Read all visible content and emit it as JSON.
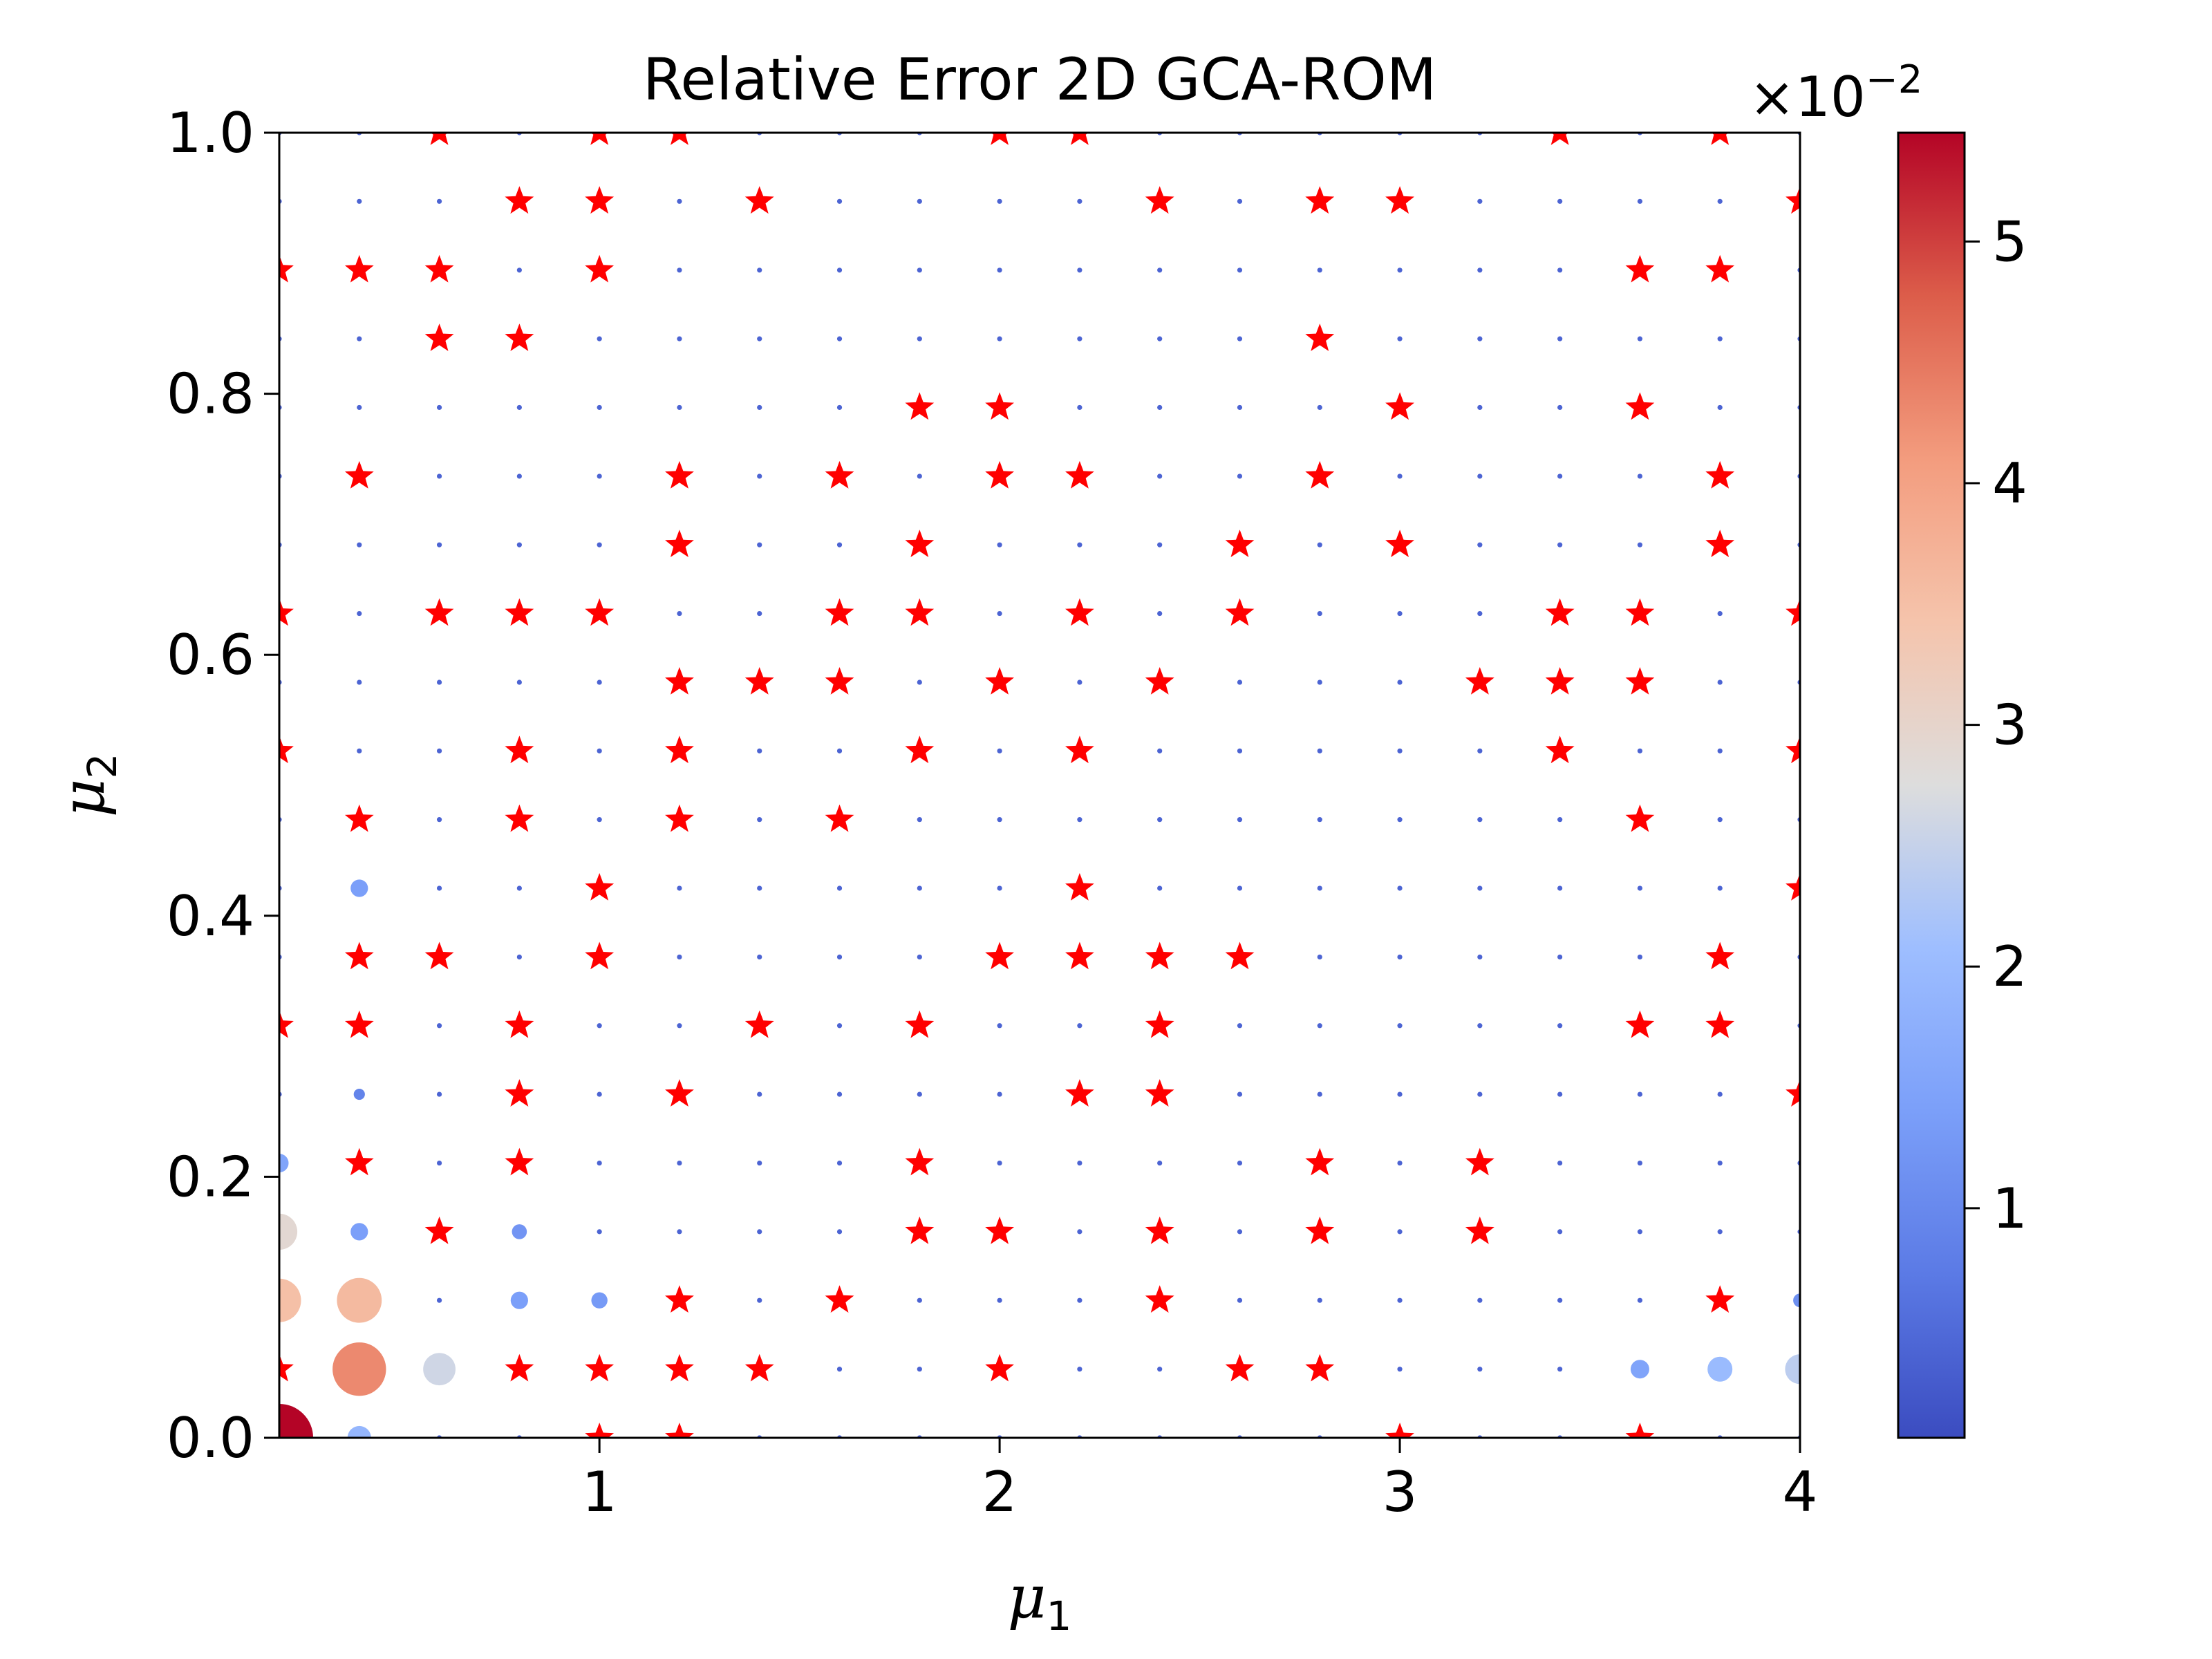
{
  "chart_data": {
    "type": "scatter",
    "title": "Relative Error 2D GCA-ROM",
    "xlabel": "μ1",
    "ylabel": "μ2",
    "xlim": [
      0.2,
      4.0
    ],
    "ylim": [
      0.0,
      1.0
    ],
    "x_ticks": [
      "1",
      "2",
      "3",
      "4"
    ],
    "x_tick_values": [
      1,
      2,
      3,
      4
    ],
    "y_ticks": [
      "0.0",
      "0.2",
      "0.4",
      "0.6",
      "0.8",
      "1.0"
    ],
    "y_tick_values": [
      0.0,
      0.2,
      0.4,
      0.6,
      0.8,
      1.0
    ],
    "grid": false,
    "colormap": "coolwarm",
    "colorbar": {
      "range": [
        0.05,
        5.45
      ],
      "ticks": [
        "1",
        "2",
        "3",
        "4",
        "5"
      ],
      "tick_values": [
        1,
        2,
        3,
        4,
        5
      ],
      "multiplier": "×10",
      "exponent": "−2"
    },
    "grid_x": [
      0.2,
      0.4,
      0.6,
      0.8,
      1.0,
      1.2,
      1.4,
      1.6,
      1.8,
      2.0,
      2.2,
      2.4,
      2.6,
      2.8,
      3.0,
      3.2,
      3.4,
      3.6,
      3.8,
      4.0
    ],
    "grid_y": [
      0.0,
      0.0526,
      0.1053,
      0.1579,
      0.2105,
      0.2632,
      0.3158,
      0.3684,
      0.4211,
      0.4737,
      0.5263,
      0.5789,
      0.6316,
      0.6842,
      0.7368,
      0.7895,
      0.8421,
      0.8947,
      0.9474,
      1.0
    ],
    "training_points_marker": "red star",
    "training_points": [
      [
        0.6,
        1.0
      ],
      [
        1.0,
        1.0
      ],
      [
        1.2,
        1.0
      ],
      [
        2.0,
        1.0
      ],
      [
        2.2,
        1.0
      ],
      [
        3.4,
        1.0
      ],
      [
        3.8,
        1.0
      ],
      [
        0.8,
        0.9474
      ],
      [
        1.0,
        0.9474
      ],
      [
        1.4,
        0.9474
      ],
      [
        2.4,
        0.9474
      ],
      [
        2.8,
        0.9474
      ],
      [
        3.0,
        0.9474
      ],
      [
        4.0,
        0.9474
      ],
      [
        0.2,
        0.8947
      ],
      [
        0.4,
        0.8947
      ],
      [
        0.6,
        0.8947
      ],
      [
        1.0,
        0.8947
      ],
      [
        3.6,
        0.8947
      ],
      [
        3.8,
        0.8947
      ],
      [
        0.6,
        0.8421
      ],
      [
        0.8,
        0.8421
      ],
      [
        2.8,
        0.8421
      ],
      [
        1.8,
        0.7895
      ],
      [
        2.0,
        0.7895
      ],
      [
        3.0,
        0.7895
      ],
      [
        3.6,
        0.7895
      ],
      [
        0.4,
        0.7368
      ],
      [
        1.2,
        0.7368
      ],
      [
        1.6,
        0.7368
      ],
      [
        2.0,
        0.7368
      ],
      [
        2.2,
        0.7368
      ],
      [
        2.8,
        0.7368
      ],
      [
        3.8,
        0.7368
      ],
      [
        1.2,
        0.6842
      ],
      [
        1.8,
        0.6842
      ],
      [
        2.6,
        0.6842
      ],
      [
        3.0,
        0.6842
      ],
      [
        3.8,
        0.6842
      ],
      [
        0.2,
        0.6316
      ],
      [
        0.6,
        0.6316
      ],
      [
        0.8,
        0.6316
      ],
      [
        1.0,
        0.6316
      ],
      [
        1.6,
        0.6316
      ],
      [
        1.8,
        0.6316
      ],
      [
        2.2,
        0.6316
      ],
      [
        2.6,
        0.6316
      ],
      [
        3.4,
        0.6316
      ],
      [
        3.6,
        0.6316
      ],
      [
        4.0,
        0.6316
      ],
      [
        1.2,
        0.5789
      ],
      [
        1.4,
        0.5789
      ],
      [
        1.6,
        0.5789
      ],
      [
        2.0,
        0.5789
      ],
      [
        2.4,
        0.5789
      ],
      [
        3.2,
        0.5789
      ],
      [
        3.4,
        0.5789
      ],
      [
        3.6,
        0.5789
      ],
      [
        0.2,
        0.5263
      ],
      [
        0.8,
        0.5263
      ],
      [
        1.2,
        0.5263
      ],
      [
        1.8,
        0.5263
      ],
      [
        2.2,
        0.5263
      ],
      [
        3.4,
        0.5263
      ],
      [
        4.0,
        0.5263
      ],
      [
        0.4,
        0.4737
      ],
      [
        0.8,
        0.4737
      ],
      [
        1.2,
        0.4737
      ],
      [
        1.6,
        0.4737
      ],
      [
        3.6,
        0.4737
      ],
      [
        1.0,
        0.4211
      ],
      [
        2.2,
        0.4211
      ],
      [
        4.0,
        0.4211
      ],
      [
        0.4,
        0.3684
      ],
      [
        0.6,
        0.3684
      ],
      [
        1.0,
        0.3684
      ],
      [
        2.0,
        0.3684
      ],
      [
        2.2,
        0.3684
      ],
      [
        2.4,
        0.3684
      ],
      [
        2.6,
        0.3684
      ],
      [
        3.8,
        0.3684
      ],
      [
        0.2,
        0.3158
      ],
      [
        0.4,
        0.3158
      ],
      [
        0.8,
        0.3158
      ],
      [
        1.4,
        0.3158
      ],
      [
        1.8,
        0.3158
      ],
      [
        2.4,
        0.3158
      ],
      [
        3.6,
        0.3158
      ],
      [
        3.8,
        0.3158
      ],
      [
        0.8,
        0.2632
      ],
      [
        1.2,
        0.2632
      ],
      [
        2.2,
        0.2632
      ],
      [
        2.4,
        0.2632
      ],
      [
        4.0,
        0.2632
      ],
      [
        0.4,
        0.2105
      ],
      [
        0.8,
        0.2105
      ],
      [
        1.8,
        0.2105
      ],
      [
        2.8,
        0.2105
      ],
      [
        3.2,
        0.2105
      ],
      [
        0.6,
        0.1579
      ],
      [
        1.8,
        0.1579
      ],
      [
        2.0,
        0.1579
      ],
      [
        2.4,
        0.1579
      ],
      [
        2.8,
        0.1579
      ],
      [
        3.2,
        0.1579
      ],
      [
        1.2,
        0.1053
      ],
      [
        1.6,
        0.1053
      ],
      [
        2.4,
        0.1053
      ],
      [
        3.8,
        0.1053
      ],
      [
        0.2,
        0.0526
      ],
      [
        0.8,
        0.0526
      ],
      [
        1.0,
        0.0526
      ],
      [
        1.2,
        0.0526
      ],
      [
        1.4,
        0.0526
      ],
      [
        2.0,
        0.0526
      ],
      [
        2.6,
        0.0526
      ],
      [
        2.8,
        0.0526
      ],
      [
        1.0,
        0.0
      ],
      [
        1.2,
        0.0
      ],
      [
        3.0,
        0.0
      ],
      [
        3.6,
        0.0
      ]
    ],
    "test_points_marker": "circle sized and colored by relative error (×10^-2)",
    "test_point_errors": [
      [
        0.2,
        0.0,
        5.45
      ],
      [
        0.4,
        0.0526,
        4.3
      ],
      [
        0.4,
        0.1053,
        3.6
      ],
      [
        0.2,
        0.1053,
        3.5
      ],
      [
        0.2,
        0.1579,
        2.9
      ],
      [
        0.6,
        0.0526,
        2.6
      ],
      [
        4.0,
        0.0526,
        2.4
      ],
      [
        3.8,
        0.0526,
        2.0
      ],
      [
        0.4,
        0.0,
        1.9
      ],
      [
        3.6,
        0.0526,
        1.5
      ],
      [
        0.2,
        0.2105,
        1.5
      ],
      [
        0.4,
        0.4211,
        1.4
      ],
      [
        0.4,
        0.1579,
        1.4
      ],
      [
        0.8,
        0.1053,
        1.4
      ],
      [
        1.0,
        0.1053,
        1.3
      ],
      [
        0.8,
        0.1579,
        1.2
      ],
      [
        4.0,
        0.1053,
        1.1
      ],
      [
        0.2,
        0.0526,
        1.0
      ],
      [
        0.4,
        0.2632,
        0.9
      ]
    ],
    "default_test_error": 0.4
  }
}
